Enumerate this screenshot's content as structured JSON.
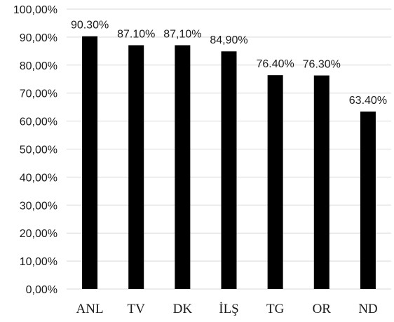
{
  "chart_data": {
    "type": "bar",
    "categories": [
      "ANL",
      "TV",
      "DK",
      "İLŞ",
      "TG",
      "OR",
      "ND"
    ],
    "values": [
      90.3,
      87.1,
      87.1,
      84.9,
      76.4,
      76.3,
      63.4
    ],
    "data_labels": [
      "90.30%",
      "87.10%",
      "87,10%",
      "84,90%",
      "76.40%",
      "76.30%",
      "63.40%"
    ],
    "y_tick_labels": [
      "0,00%",
      "10,00%",
      "20,00%",
      "30,00%",
      "40,00%",
      "50,00%",
      "60,00%",
      "70,00%",
      "80,00%",
      "90,00%",
      "100,00%"
    ],
    "ylim": [
      0,
      100
    ],
    "y_step": 10,
    "grid": true,
    "legend": "none",
    "bar_color": "#000000",
    "grid_color": "#d9d9d9"
  }
}
